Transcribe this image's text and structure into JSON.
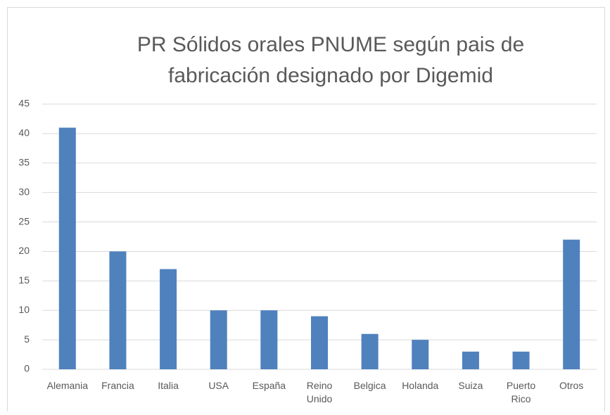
{
  "chart_data": {
    "type": "bar",
    "title": "PR Sólidos orales PNUME según pais de fabricación designado por Digemid",
    "categories": [
      "Alemania",
      "Francia",
      "Italia",
      "USA",
      "España",
      "Reino Unido",
      "Belgica",
      "Holanda",
      "Suiza",
      "Puerto Rico",
      "Otros"
    ],
    "values": [
      41,
      20,
      17,
      10,
      10,
      9,
      6,
      5,
      3,
      3,
      22
    ],
    "color": "#4f81bd",
    "ylim": [
      0,
      45
    ],
    "yticks": [
      0,
      5,
      10,
      15,
      20,
      25,
      30,
      35,
      40,
      45
    ],
    "grid": true
  }
}
